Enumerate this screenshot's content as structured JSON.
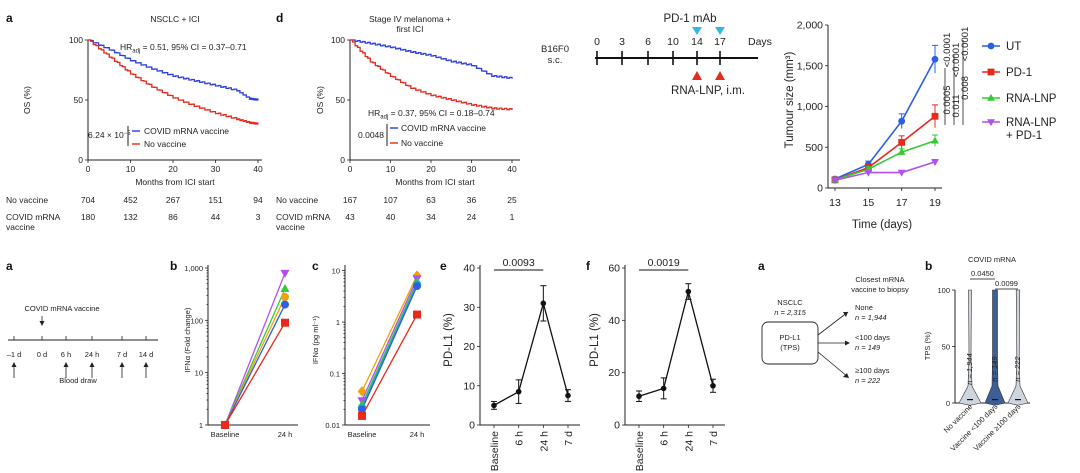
{
  "panels": {
    "a_km": {
      "label": "a",
      "title": "NSCLC + ICI",
      "ylabel": "OS (%)",
      "xlabel": "Months from ICI start",
      "hr": "HR",
      "hr_sub": "adj",
      "hr_rest": " = 0.51, 95% CI = 0.37–0.71",
      "pvalue": "6.24 × 10",
      "pvalue_exp": "−5",
      "legend": [
        "COVID mRNA vaccine",
        "No vaccine"
      ],
      "yticks": [
        "100",
        "50",
        "0"
      ],
      "xticks": [
        "0",
        "10",
        "20",
        "30",
        "40"
      ],
      "risk_rows": [
        {
          "label": [
            "No vaccine"
          ],
          "values": [
            "704",
            "452",
            "267",
            "151",
            "94"
          ]
        },
        {
          "label": [
            "COVID mRNA",
            "vaccine"
          ],
          "values": [
            "180",
            "132",
            "86",
            "44",
            "3"
          ]
        }
      ]
    },
    "d_km": {
      "label": "d",
      "title": [
        "Stage IV melanoma +",
        "first ICI"
      ],
      "ylabel": "OS (%)",
      "xlabel": "Months from ICI start",
      "hr": "HR",
      "hr_sub": "adj",
      "hr_rest": " = 0.37, 95% CI = 0.18–0.74",
      "pvalue": "0.0048",
      "legend": [
        "COVID mRNA vaccine",
        "No vaccine"
      ],
      "yticks": [
        "100",
        "50",
        "0"
      ],
      "xticks": [
        "0",
        "10",
        "20",
        "30",
        "40"
      ],
      "risk_rows": [
        {
          "label": [
            "No vaccine"
          ],
          "values": [
            "167",
            "107",
            "63",
            "36",
            "25"
          ]
        },
        {
          "label": [
            "COVID mRNA",
            "vaccine"
          ],
          "values": [
            "43",
            "40",
            "34",
            "24",
            "1"
          ]
        }
      ]
    },
    "schedule": {
      "drug_label": "PD-1 mAb",
      "model": [
        "B16F0",
        "s.c."
      ],
      "days": [
        "0",
        "3",
        "6",
        "10",
        "14",
        "17",
        "Days"
      ],
      "vaccine_label": "RNA-LNP, i.m."
    },
    "b_label": "b",
    "c_label": "c",
    "e_label": "e",
    "f_label": "f",
    "a2_label": "a",
    "b2_label": "b",
    "timeline": {
      "title": "COVID mRNA vaccine",
      "points": [
        "–1 d",
        "0 d",
        "6 h",
        "24 h",
        "7 d",
        "14 d"
      ],
      "blood": "Blood draw"
    },
    "flow": {
      "cohort": "NSCLC",
      "cohort_n": "n = 2,315",
      "box": [
        "PD-L1",
        "(TPS)"
      ],
      "header": [
        "Closest mRNA",
        "vaccine to biopsy"
      ],
      "groups": [
        {
          "name": "None",
          "n": "n = 1,944"
        },
        {
          "name": "<100 days",
          "n": "n = 149"
        },
        {
          "name": "≥100 days",
          "n": "n = 222"
        }
      ]
    },
    "violin": {
      "title": "COVID mRNA",
      "ylabel": "TPS (%)",
      "yticks": [
        "0",
        "50",
        "100"
      ],
      "categories": [
        "No vaccine",
        "Vaccine <100 days",
        "Vaccine ≥100 days"
      ],
      "n_labels": [
        "n = 1,944",
        "n = 149",
        "n = 222"
      ],
      "p_values": [
        "0.0450",
        "0.0099"
      ]
    }
  },
  "chart_data": [
    {
      "type": "line",
      "id": "km_nsclc",
      "title": "NSCLC + ICI",
      "xlabel": "Months from ICI start",
      "ylabel": "OS (%)",
      "xlim": [
        0,
        40
      ],
      "ylim": [
        0,
        100
      ],
      "series": [
        {
          "name": "COVID mRNA vaccine",
          "color": "#2b3ee0",
          "x": [
            0,
            5,
            10,
            15,
            20,
            25,
            30,
            35,
            38,
            40
          ],
          "y": [
            100,
            92,
            83,
            76,
            70,
            66,
            62,
            58,
            51,
            50
          ]
        },
        {
          "name": "No vaccine",
          "color": "#e8291c",
          "x": [
            0,
            5,
            10,
            15,
            20,
            25,
            30,
            35,
            38,
            40
          ],
          "y": [
            100,
            86,
            72,
            61,
            52,
            45,
            39,
            34,
            31,
            30
          ]
        }
      ]
    },
    {
      "type": "line",
      "id": "km_melanoma",
      "title": "Stage IV melanoma + first ICI",
      "xlabel": "Months from ICI start",
      "ylabel": "OS (%)",
      "xlim": [
        0,
        40
      ],
      "ylim": [
        0,
        100
      ],
      "series": [
        {
          "name": "COVID mRNA vaccine",
          "color": "#2b3ee0",
          "x": [
            0,
            5,
            10,
            15,
            20,
            25,
            30,
            35,
            40
          ],
          "y": [
            100,
            97,
            94,
            90,
            87,
            82,
            79,
            70,
            68
          ]
        },
        {
          "name": "No vaccine",
          "color": "#e8291c",
          "x": [
            0,
            5,
            10,
            15,
            20,
            25,
            30,
            35,
            40
          ],
          "y": [
            100,
            82,
            70,
            60,
            54,
            50,
            46,
            43,
            42
          ]
        }
      ]
    },
    {
      "type": "line",
      "id": "tumour",
      "xlabel": "Time (days)",
      "ylabel": "Tumour size (mm³)",
      "categories": [
        "13",
        "15",
        "17",
        "19"
      ],
      "ylim": [
        0,
        2000
      ],
      "yticks": [
        "0",
        "500",
        "1,000",
        "1,500",
        "2,000"
      ],
      "series": [
        {
          "name": "UT",
          "color": "#2c5fe8",
          "marker": "circle",
          "values": [
            110,
            290,
            820,
            1580
          ],
          "err": [
            20,
            40,
            90,
            170
          ]
        },
        {
          "name": "PD-1",
          "color": "#e8291c",
          "marker": "square",
          "values": [
            100,
            250,
            560,
            880
          ],
          "err": [
            15,
            35,
            80,
            140
          ]
        },
        {
          "name": "RNA-LNP",
          "color": "#33cc33",
          "marker": "triangle",
          "values": [
            100,
            230,
            440,
            580
          ],
          "err": [
            15,
            30,
            40,
            70
          ]
        },
        {
          "name": "RNA-LNP\n+ PD-1",
          "color": "#b24ff0",
          "marker": "triangle-down",
          "values": [
            95,
            190,
            190,
            320
          ],
          "err": [
            10,
            20,
            20,
            30
          ]
        }
      ],
      "legend_lines": [
        [
          "UT"
        ],
        [
          "PD-1"
        ],
        [
          "RNA-LNP"
        ],
        [
          "RNA-LNP",
          "+ PD-1"
        ]
      ],
      "p_values": [
        "0.0005",
        "0.011",
        "0.008",
        "<0.0001",
        "<0.0001",
        "<0.0001"
      ]
    },
    {
      "type": "line",
      "id": "ifna",
      "scale": "log",
      "ylabel": "IFNα (Fold change)",
      "categories": [
        "Baseline",
        "24 h"
      ],
      "yticks": [
        "1",
        "10",
        "100",
        "1,000"
      ],
      "series": [
        {
          "name": "s1",
          "color": "#b24ff0",
          "marker": "triangle-down",
          "values": [
            1,
            800
          ]
        },
        {
          "name": "s2",
          "color": "#33cc33",
          "marker": "triangle",
          "values": [
            1,
            400
          ]
        },
        {
          "name": "s3",
          "color": "#f2a10a",
          "marker": "circle",
          "values": [
            1,
            280
          ]
        },
        {
          "name": "s4",
          "color": "#2c5fe8",
          "marker": "circle",
          "values": [
            1,
            200
          ]
        },
        {
          "name": "s5",
          "color": "#e8291c",
          "marker": "square",
          "values": [
            1,
            90
          ]
        }
      ]
    },
    {
      "type": "line",
      "id": "ifng",
      "scale": "log",
      "ylabel": "IFNα (pg ml⁻¹)",
      "categories": [
        "Baseline",
        "24 h"
      ],
      "yticks": [
        "0.01",
        "0.1",
        "1",
        "10"
      ],
      "series": [
        {
          "name": "s1",
          "color": "#f2a10a",
          "marker": "diamond",
          "values": [
            0.045,
            8
          ]
        },
        {
          "name": "s2",
          "color": "#b24ff0",
          "marker": "triangle-down",
          "values": [
            0.03,
            7
          ]
        },
        {
          "name": "s3",
          "color": "#33cc33",
          "marker": "triangle",
          "values": [
            0.025,
            6
          ]
        },
        {
          "name": "s4",
          "color": "#1fb5a6",
          "marker": "circle",
          "values": [
            0.022,
            5.5
          ]
        },
        {
          "name": "s5",
          "color": "#2c5fe8",
          "marker": "circle",
          "values": [
            0.02,
            5
          ]
        },
        {
          "name": "s6",
          "color": "#e8291c",
          "marker": "square",
          "values": [
            0.015,
            1.4
          ]
        }
      ]
    },
    {
      "type": "line",
      "id": "pdl1_e",
      "ylabel": "PD-L1 (%)",
      "categories": [
        "Baseline",
        "6 h",
        "24 h",
        "7 d"
      ],
      "ylim": [
        0,
        40
      ],
      "yticks": [
        "0",
        "10",
        "20",
        "30",
        "40"
      ],
      "values": [
        5,
        8.5,
        31,
        7.5
      ],
      "err": [
        1,
        3,
        4.5,
        1.5
      ],
      "p_value": "0.0093"
    },
    {
      "type": "line",
      "id": "pdl1_f",
      "ylabel": "PD-L1 (%)",
      "categories": [
        "Baseline",
        "6 h",
        "24 h",
        "7 d"
      ],
      "ylim": [
        0,
        60
      ],
      "yticks": [
        "0",
        "20",
        "40",
        "60"
      ],
      "values": [
        11,
        14,
        51,
        15
      ],
      "err": [
        2,
        4,
        3,
        2.5
      ],
      "p_value": "0.0019"
    }
  ]
}
